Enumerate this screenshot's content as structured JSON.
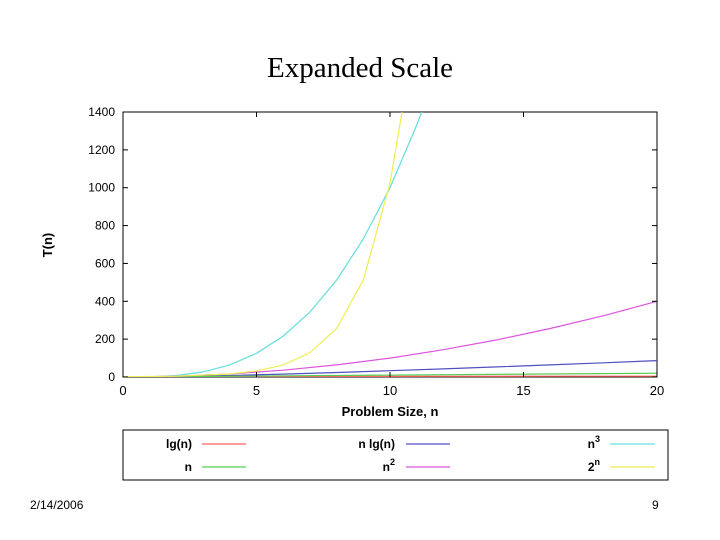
{
  "slide": {
    "title": "Expanded Scale",
    "date": "2/14/2006",
    "page": "9"
  },
  "chart_data": {
    "type": "line",
    "title": "",
    "xlabel": "Problem Size, n",
    "ylabel": "T(n)",
    "xlim": [
      0,
      20
    ],
    "ylim": [
      0,
      1400
    ],
    "xticks": [
      0,
      5,
      10,
      15,
      20
    ],
    "yticks": [
      0,
      200,
      400,
      600,
      800,
      1000,
      1200,
      1400
    ],
    "grid": false,
    "legend_position": "below",
    "series": [
      {
        "name": "lg(n)",
        "sup": "",
        "color": "#ff6060",
        "x": [
          1,
          2,
          4,
          8,
          12,
          16,
          20
        ],
        "y": [
          0,
          1,
          2,
          3,
          3.58,
          4,
          4.32
        ]
      },
      {
        "name": "n lg(n)",
        "sup": "",
        "color": "#5050c0",
        "x": [
          1,
          2,
          4,
          6,
          8,
          10,
          12,
          14,
          16,
          18,
          20
        ],
        "y": [
          0,
          2,
          8,
          15.5,
          24,
          33.2,
          43,
          53.3,
          64,
          75,
          86.4
        ]
      },
      {
        "name": "n",
        "sup": "3",
        "color": "#66dddd",
        "x": [
          0,
          1,
          2,
          3,
          4,
          5,
          6,
          7,
          8,
          9,
          10,
          11,
          11.2
        ],
        "y": [
          0,
          1,
          8,
          27,
          64,
          125,
          216,
          343,
          512,
          729,
          1000,
          1331,
          1405
        ]
      },
      {
        "name": "n",
        "sup": "",
        "color": "#55cc55",
        "x": [
          0,
          20
        ],
        "y": [
          0,
          20
        ]
      },
      {
        "name": "n",
        "sup": "2",
        "color": "#dd55dd",
        "x": [
          0,
          2,
          4,
          6,
          8,
          10,
          12,
          14,
          16,
          18,
          20
        ],
        "y": [
          0,
          4,
          16,
          36,
          64,
          100,
          144,
          196,
          256,
          324,
          400
        ]
      },
      {
        "name": "2",
        "sup": "n",
        "color": "#eeee55",
        "x": [
          0,
          2,
          4,
          5,
          6,
          7,
          8,
          9,
          10,
          10.45
        ],
        "y": [
          1,
          4,
          16,
          32,
          64,
          128,
          256,
          512,
          1024,
          1400
        ]
      }
    ]
  }
}
